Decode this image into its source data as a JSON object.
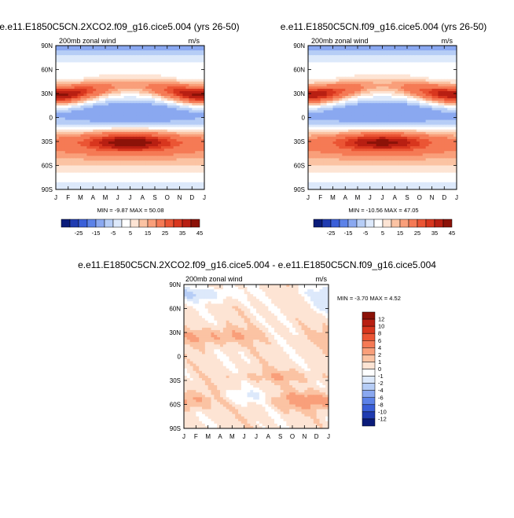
{
  "panels": [
    {
      "title": "e.e11.E1850C5CN.2XCO2.f09_g16.cice5.004 (yrs 26-50)",
      "left_label": "200mb zonal wind",
      "right_label": "m/s",
      "minmax": "MIN =  -9.87 MAX =  50.08"
    },
    {
      "title": "e.e11.E1850C5CN.f09_g16.cice5.004 (yrs 26-50)",
      "left_label": "200mb zonal wind",
      "right_label": "m/s",
      "minmax": "MIN = -10.56 MAX =  47.05"
    },
    {
      "title": "e.e11.E1850C5CN.2XCO2.f09_g16.cice5.004 - e.e11.E1850C5CN.f09_g16.cice5.004",
      "left_label": "200mb zonal wind",
      "right_label": "m/s",
      "minmax": "MIN =  -3.70 MAX =   4.52"
    }
  ],
  "chart_data": [
    {
      "type": "heatmap",
      "title": "e.e11.E1850C5CN.2XCO2.f09_g16.cice5.004 (yrs 26-50)",
      "subtitle": "200mb zonal wind",
      "units": "m/s",
      "x_ticks": [
        "J",
        "F",
        "M",
        "A",
        "M",
        "J",
        "J",
        "A",
        "S",
        "O",
        "N",
        "D",
        "J"
      ],
      "y_ticks": [
        "90N",
        "60N",
        "30N",
        "0",
        "30S",
        "60S",
        "90S"
      ],
      "ylim": [
        -90,
        90
      ],
      "min": -9.87,
      "max": 50.08,
      "colorbar_labels": [
        "-25",
        "-15",
        "-5",
        "5",
        "15",
        "25",
        "35",
        "45"
      ],
      "colorbar_levels": [
        -30,
        -25,
        -20,
        -15,
        -10,
        -5,
        0,
        5,
        10,
        15,
        20,
        25,
        30,
        35,
        40,
        45,
        50
      ],
      "colorbar_orientation": "horizontal",
      "features": {
        "jets": [
          {
            "lat": 28,
            "peak_month": 1.0,
            "peak_value": 50
          },
          {
            "lat": 28,
            "peak_month": 12.5,
            "peak_value": 40
          },
          {
            "lat": -28,
            "peak_month": 7.5,
            "peak_value": 45
          }
        ],
        "easterly_min": {
          "lat": 5,
          "month": 7.5,
          "value": -10
        }
      }
    },
    {
      "type": "heatmap",
      "title": "e.e11.E1850C5CN.f09_g16.cice5.004 (yrs 26-50)",
      "subtitle": "200mb zonal wind",
      "units": "m/s",
      "x_ticks": [
        "J",
        "F",
        "M",
        "A",
        "M",
        "J",
        "J",
        "A",
        "S",
        "O",
        "N",
        "D",
        "J"
      ],
      "y_ticks": [
        "90N",
        "60N",
        "30N",
        "0",
        "30S",
        "60S",
        "90S"
      ],
      "ylim": [
        -90,
        90
      ],
      "min": -10.56,
      "max": 47.05,
      "colorbar_labels": [
        "-25",
        "-15",
        "-5",
        "5",
        "15",
        "25",
        "35",
        "45"
      ],
      "colorbar_levels": [
        -30,
        -25,
        -20,
        -15,
        -10,
        -5,
        0,
        5,
        10,
        15,
        20,
        25,
        30,
        35,
        40,
        45,
        50
      ],
      "colorbar_orientation": "horizontal",
      "features": {
        "jets": [
          {
            "lat": 28,
            "peak_month": 1.0,
            "peak_value": 47
          },
          {
            "lat": 28,
            "peak_month": 12.5,
            "peak_value": 38
          },
          {
            "lat": -28,
            "peak_month": 7.5,
            "peak_value": 43
          }
        ],
        "easterly_min": {
          "lat": 5,
          "month": 7.5,
          "value": -10.5
        }
      }
    },
    {
      "type": "heatmap",
      "title": "e.e11.E1850C5CN.2XCO2.f09_g16.cice5.004 - e.e11.E1850C5CN.f09_g16.cice5.004",
      "subtitle": "200mb zonal wind",
      "units": "m/s",
      "x_ticks": [
        "J",
        "F",
        "M",
        "A",
        "M",
        "J",
        "J",
        "A",
        "S",
        "O",
        "N",
        "D",
        "J"
      ],
      "y_ticks": [
        "90N",
        "60N",
        "30N",
        "0",
        "30S",
        "60S",
        "90S"
      ],
      "ylim": [
        -90,
        90
      ],
      "min": -3.7,
      "max": 4.52,
      "colorbar_labels": [
        "12",
        "10",
        "8",
        "6",
        "4",
        "2",
        "1",
        "0",
        "-1",
        "-2",
        "-4",
        "-6",
        "-8",
        "-10",
        "-12"
      ],
      "colorbar_levels": [
        -12,
        -10,
        -8,
        -6,
        -4,
        -2,
        -1,
        0,
        1,
        2,
        4,
        6,
        8,
        10,
        12
      ],
      "colorbar_orientation": "vertical"
    }
  ],
  "colors": {
    "cold_to_hot": [
      "#0b1c7a",
      "#1f3bb0",
      "#3a5fd8",
      "#5c82e8",
      "#8aa8f0",
      "#b6cdf6",
      "#dde9fb",
      "#ffffff",
      "#fde4d4",
      "#fbc3a3",
      "#f99f7a",
      "#f57a55",
      "#eb5534",
      "#d8361e",
      "#b81f12",
      "#8c1208"
    ]
  }
}
